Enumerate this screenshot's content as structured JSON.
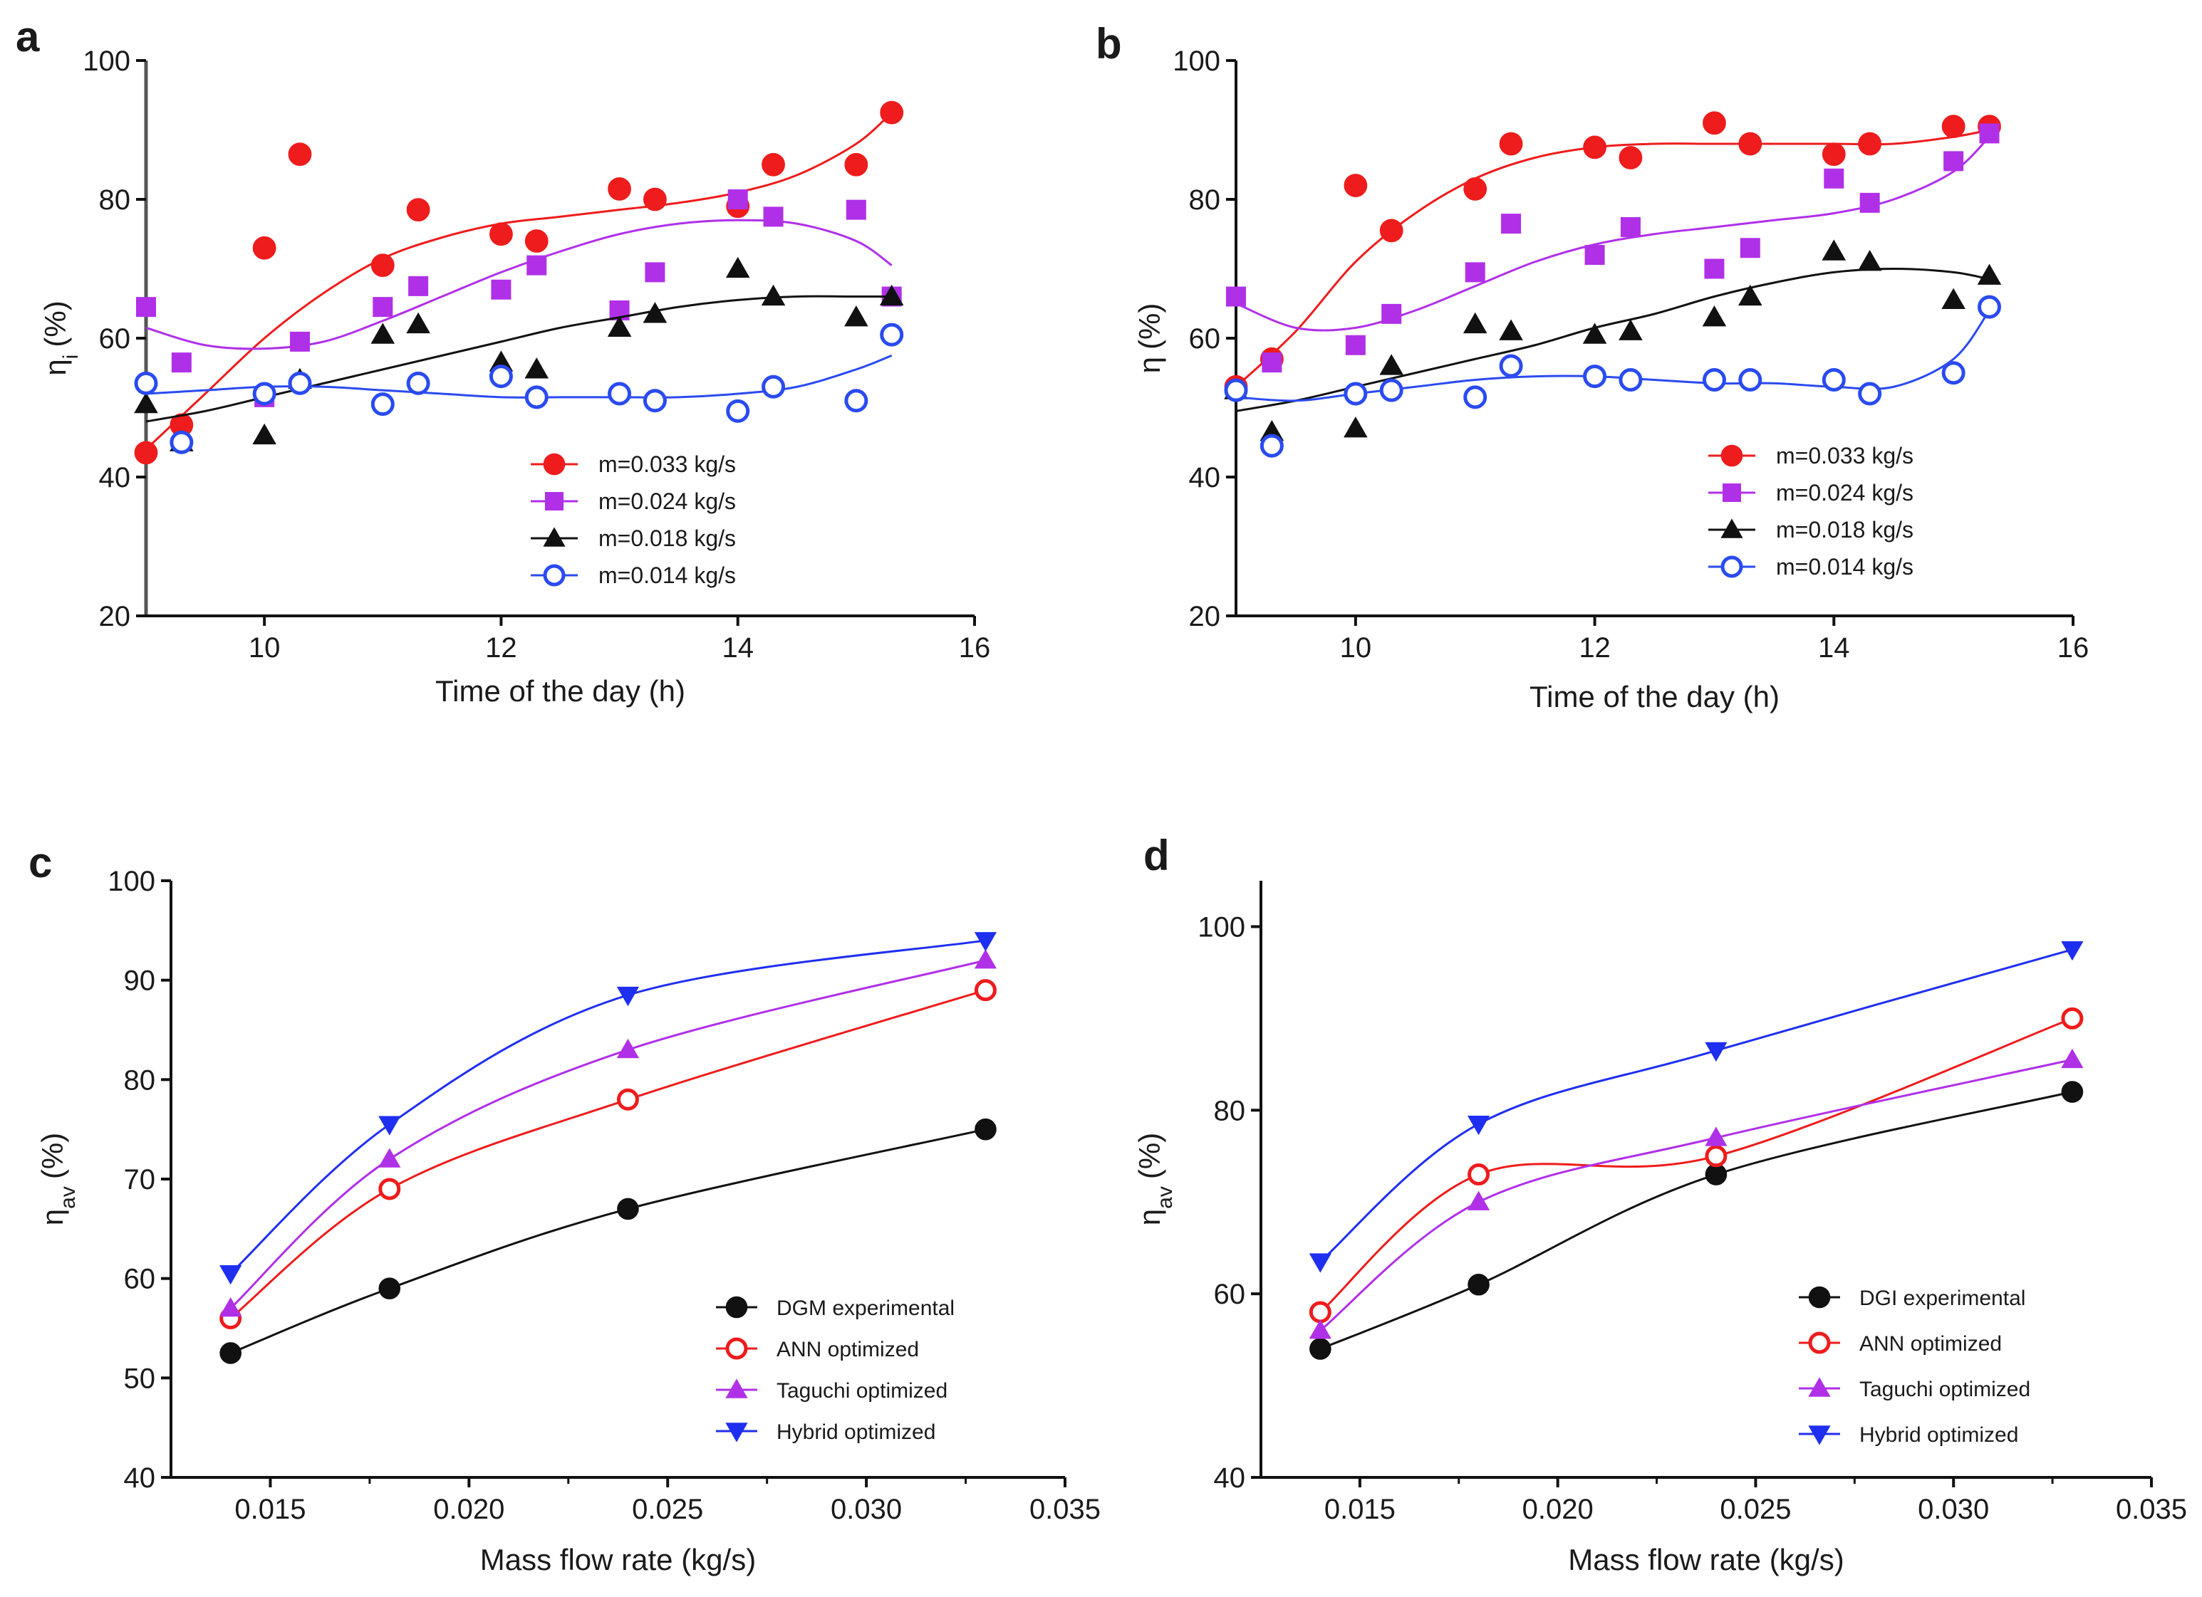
{
  "chart_data": [
    {
      "panel": "a",
      "type": "scatter",
      "xlabel": "Time of the day (h)",
      "ylabel": "η",
      "ylabel_sub": "i",
      "ylabel_unit": "(%)",
      "xlim": [
        9,
        16
      ],
      "ylim": [
        20,
        100
      ],
      "xticks": [
        10,
        12,
        14,
        16
      ],
      "yticks": [
        20,
        40,
        60,
        80,
        100
      ],
      "legend_position": "bottom-center",
      "series": [
        {
          "name": "m=0.033 kg/s",
          "color": "#ee1c1c",
          "marker": "circle",
          "x": [
            9,
            9.3,
            10,
            10.3,
            11,
            11.3,
            12,
            12.3,
            13,
            13.3,
            14,
            14.3,
            15,
            15.3
          ],
          "y": [
            43.5,
            47.5,
            73,
            86.5,
            70.5,
            78.5,
            75,
            74,
            81.5,
            80,
            79,
            85,
            85,
            92.5
          ],
          "fit": [
            [
              9,
              44
            ],
            [
              9.5,
              52
            ],
            [
              10,
              60
            ],
            [
              10.5,
              66.5
            ],
            [
              11,
              71.5
            ],
            [
              11.5,
              74.5
            ],
            [
              12,
              76.5
            ],
            [
              12.5,
              77.5
            ],
            [
              13,
              78.5
            ],
            [
              13.5,
              79.5
            ],
            [
              14,
              81
            ],
            [
              14.5,
              83.5
            ],
            [
              15,
              88
            ],
            [
              15.3,
              92.5
            ]
          ]
        },
        {
          "name": "m=0.024 kg/s",
          "color": "#b030e8",
          "marker": "square",
          "x": [
            9,
            9.3,
            10,
            10.3,
            11,
            11.3,
            12,
            12.3,
            13,
            13.3,
            14,
            14.3,
            15,
            15.3
          ],
          "y": [
            64.5,
            56.5,
            51.5,
            59.5,
            64.5,
            67.5,
            67,
            70.5,
            64,
            69.5,
            80,
            77.5,
            78.5,
            66
          ],
          "fit": [
            [
              9,
              61.5
            ],
            [
              9.5,
              59
            ],
            [
              10,
              58.5
            ],
            [
              10.5,
              59.5
            ],
            [
              11,
              62.5
            ],
            [
              11.5,
              66
            ],
            [
              12,
              69.5
            ],
            [
              12.5,
              72.5
            ],
            [
              13,
              75
            ],
            [
              13.5,
              76.5
            ],
            [
              14,
              77
            ],
            [
              14.5,
              76.5
            ],
            [
              15,
              74
            ],
            [
              15.3,
              70.5
            ]
          ]
        },
        {
          "name": "m=0.018 kg/s",
          "color": "#111111",
          "marker": "triangle-up",
          "x": [
            9,
            9.3,
            10,
            10.3,
            11,
            11.3,
            12,
            12.3,
            13,
            13.3,
            14,
            14.3,
            15,
            15.3
          ],
          "y": [
            50.5,
            45,
            46,
            54,
            60.5,
            62,
            56.5,
            55.5,
            61.5,
            63.5,
            70,
            66,
            63,
            66
          ],
          "fit": [
            [
              9,
              48
            ],
            [
              9.5,
              49.5
            ],
            [
              10,
              51.5
            ],
            [
              10.5,
              53.5
            ],
            [
              11,
              55.5
            ],
            [
              11.5,
              57.5
            ],
            [
              12,
              59.5
            ],
            [
              12.5,
              61.5
            ],
            [
              13,
              63
            ],
            [
              13.5,
              64.5
            ],
            [
              14,
              65.5
            ],
            [
              14.5,
              66
            ],
            [
              15,
              66
            ],
            [
              15.3,
              66
            ]
          ]
        },
        {
          "name": "m=0.014 kg/s",
          "color": "#2a4bf0",
          "marker": "circle-open",
          "x": [
            9,
            9.3,
            10,
            10.3,
            11,
            11.3,
            12,
            12.3,
            13,
            13.3,
            14,
            14.3,
            15,
            15.3
          ],
          "y": [
            53.5,
            45,
            52,
            53.5,
            50.5,
            53.5,
            54.5,
            51.5,
            52,
            51,
            49.5,
            53,
            51,
            60.5
          ],
          "fit": [
            [
              9,
              52
            ],
            [
              9.5,
              52.5
            ],
            [
              10,
              53
            ],
            [
              10.5,
              53
            ],
            [
              11,
              52.5
            ],
            [
              11.5,
              52
            ],
            [
              12,
              51.5
            ],
            [
              12.5,
              51.5
            ],
            [
              13,
              51.5
            ],
            [
              13.5,
              51.5
            ],
            [
              14,
              52
            ],
            [
              14.5,
              53
            ],
            [
              15,
              55.5
            ],
            [
              15.3,
              57.5
            ]
          ]
        }
      ]
    },
    {
      "panel": "b",
      "type": "scatter",
      "xlabel": "Time of the day (h)",
      "ylabel": "η",
      "ylabel_sub": "",
      "ylabel_unit": "(%)",
      "xlim": [
        9,
        16
      ],
      "ylim": [
        20,
        100
      ],
      "xticks": [
        10,
        12,
        14,
        16
      ],
      "yticks": [
        20,
        40,
        60,
        80,
        100
      ],
      "legend_position": "bottom-right",
      "series": [
        {
          "name": "m=0.033 kg/s",
          "color": "#ee1c1c",
          "marker": "circle",
          "x": [
            9,
            9.3,
            10,
            10.3,
            11,
            11.3,
            12,
            12.3,
            13,
            13.3,
            14,
            14.3,
            15,
            15.3
          ],
          "y": [
            53,
            57,
            82,
            75.5,
            81.5,
            88,
            87.5,
            86,
            91,
            88,
            86.5,
            88,
            90.5,
            90.5
          ],
          "fit": [
            [
              9,
              53
            ],
            [
              9.5,
              61
            ],
            [
              10,
              71
            ],
            [
              10.5,
              78
            ],
            [
              11,
              83
            ],
            [
              11.5,
              86
            ],
            [
              12,
              87.5
            ],
            [
              12.5,
              88
            ],
            [
              13,
              88
            ],
            [
              13.5,
              88
            ],
            [
              14,
              88
            ],
            [
              14.5,
              88
            ],
            [
              15,
              89
            ],
            [
              15.3,
              90
            ]
          ]
        },
        {
          "name": "m=0.024 kg/s",
          "color": "#b030e8",
          "marker": "square",
          "x": [
            9,
            9.3,
            10,
            10.3,
            11,
            11.3,
            12,
            12.3,
            13,
            13.3,
            14,
            14.3,
            15,
            15.3
          ],
          "y": [
            66,
            56.5,
            59,
            63.5,
            69.5,
            76.5,
            72,
            76,
            70,
            73,
            83,
            79.5,
            85.5,
            89.5
          ],
          "fit": [
            [
              9,
              65
            ],
            [
              9.5,
              61.5
            ],
            [
              10,
              61.5
            ],
            [
              10.5,
              64
            ],
            [
              11,
              67.5
            ],
            [
              11.5,
              71
            ],
            [
              12,
              73.5
            ],
            [
              12.5,
              75
            ],
            [
              13,
              76
            ],
            [
              13.5,
              77
            ],
            [
              14,
              78
            ],
            [
              14.5,
              80
            ],
            [
              15,
              84
            ],
            [
              15.3,
              89
            ]
          ]
        },
        {
          "name": "m=0.018 kg/s",
          "color": "#111111",
          "marker": "triangle-up",
          "x": [
            9,
            9.3,
            10,
            10.3,
            11,
            11.3,
            12,
            12.3,
            13,
            13.3,
            14,
            14.3,
            15,
            15.3
          ],
          "y": [
            52.5,
            46.5,
            47,
            56,
            62,
            61,
            60.5,
            61,
            63,
            66,
            72.5,
            71,
            65.5,
            69
          ],
          "fit": [
            [
              9,
              49.5
            ],
            [
              9.5,
              51
            ],
            [
              10,
              53
            ],
            [
              10.5,
              55
            ],
            [
              11,
              57
            ],
            [
              11.5,
              59
            ],
            [
              12,
              61.5
            ],
            [
              12.5,
              63.5
            ],
            [
              13,
              66
            ],
            [
              13.5,
              68
            ],
            [
              14,
              69.5
            ],
            [
              14.5,
              70
            ],
            [
              15,
              69.5
            ],
            [
              15.3,
              68.5
            ]
          ]
        },
        {
          "name": "m=0.014 kg/s",
          "color": "#2a4bf0",
          "marker": "circle-open",
          "x": [
            9,
            9.3,
            10,
            10.3,
            11,
            11.3,
            12,
            12.3,
            13,
            13.3,
            14,
            14.3,
            15,
            15.3
          ],
          "y": [
            52.5,
            44.5,
            52,
            52.5,
            51.5,
            56,
            54.5,
            54,
            54,
            54,
            54,
            52,
            55,
            64.5
          ],
          "fit": [
            [
              9,
              51.5
            ],
            [
              9.5,
              51
            ],
            [
              10,
              52
            ],
            [
              10.5,
              53
            ],
            [
              11,
              54
            ],
            [
              11.5,
              54.5
            ],
            [
              12,
              54.5
            ],
            [
              12.5,
              54
            ],
            [
              13,
              53.5
            ],
            [
              13.5,
              53.5
            ],
            [
              14,
              53
            ],
            [
              14.5,
              53
            ],
            [
              15,
              57
            ],
            [
              15.3,
              64
            ]
          ]
        }
      ]
    },
    {
      "panel": "c",
      "type": "line",
      "xlabel": "Mass flow rate (kg/s)",
      "ylabel": "η",
      "ylabel_sub": "av",
      "ylabel_unit": "(%)",
      "xlim": [
        0.0125,
        0.035
      ],
      "ylim": [
        40,
        100
      ],
      "xticks": [
        0.015,
        0.02,
        0.025,
        0.03,
        0.035
      ],
      "xtick_labels": [
        "0.015",
        "0.020",
        "0.025",
        "0.030",
        "0.035"
      ],
      "yticks": [
        40,
        50,
        60,
        70,
        80,
        90,
        100
      ],
      "x": [
        0.014,
        0.018,
        0.024,
        0.033
      ],
      "legend_position": "bottom-right",
      "series": [
        {
          "name": "DGM experimental",
          "color": "#111111",
          "marker": "circle",
          "values": [
            52.5,
            59,
            67,
            75
          ]
        },
        {
          "name": "ANN optimized",
          "color": "#ee1c1c",
          "marker": "circle-open",
          "values": [
            56,
            69,
            78,
            89
          ]
        },
        {
          "name": "Taguchi optimized",
          "color": "#b030e8",
          "marker": "triangle-up",
          "values": [
            57,
            72,
            83,
            92
          ]
        },
        {
          "name": "Hybrid optimized",
          "color": "#1f2ff0",
          "marker": "triangle-down",
          "values": [
            60.5,
            75.5,
            88.5,
            94
          ]
        }
      ]
    },
    {
      "panel": "d",
      "type": "line",
      "xlabel": "Mass flow rate (kg/s)",
      "ylabel": "η",
      "ylabel_sub": "av",
      "ylabel_unit": "(%)",
      "xlim": [
        0.0125,
        0.035
      ],
      "ylim": [
        40,
        105
      ],
      "xticks": [
        0.015,
        0.02,
        0.025,
        0.03,
        0.035
      ],
      "xtick_labels": [
        "0.015",
        "0.020",
        "0.025",
        "0.030",
        "0.035"
      ],
      "yticks": [
        40,
        60,
        80,
        100
      ],
      "x": [
        0.014,
        0.018,
        0.024,
        0.033
      ],
      "legend_position": "bottom-right",
      "series": [
        {
          "name": "DGI experimental",
          "color": "#111111",
          "marker": "circle",
          "values": [
            54,
            61,
            73,
            82
          ]
        },
        {
          "name": "ANN optimized",
          "color": "#ee1c1c",
          "marker": "circle-open",
          "values": [
            58,
            73,
            75,
            90
          ]
        },
        {
          "name": "Taguchi optimized",
          "color": "#b030e8",
          "marker": "triangle-up",
          "values": [
            56,
            70,
            77,
            85.5
          ]
        },
        {
          "name": "Hybrid optimized",
          "color": "#1f2ff0",
          "marker": "triangle-down",
          "values": [
            63.5,
            78.5,
            86.5,
            97.5
          ]
        }
      ]
    }
  ]
}
